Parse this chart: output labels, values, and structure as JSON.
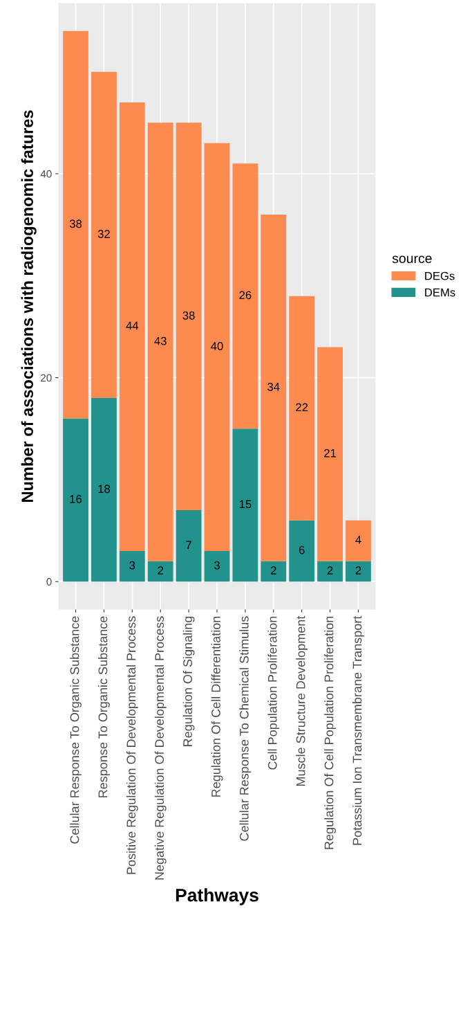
{
  "chart_data": {
    "type": "bar",
    "stacked": true,
    "xlabel": "Pathways",
    "ylabel": "Number of associations with radiogenomic fatures",
    "legend_title": "source",
    "legend": "right",
    "categories": [
      "Cellular Response To Organic Substance",
      "Response To Organic Substance",
      "Positive Regulation Of Developmental Process",
      "Negative Regulation Of Developmental Process",
      "Regulation Of Signaling",
      "Regulation Of Cell Differentiation",
      "Cellular Response To Chemical Stimulus",
      "Cell Population Proliferation",
      "Muscle Structure Development",
      "Regulation Of Cell Population Proliferation",
      "Potassium Ion Transmembrane Transport"
    ],
    "series": [
      {
        "name": "DEMs",
        "color": "#21928c",
        "values": [
          16,
          18,
          3,
          2,
          7,
          3,
          15,
          2,
          6,
          2,
          2
        ]
      },
      {
        "name": "DEGs",
        "color": "#fd8b4f",
        "values": [
          38,
          32,
          44,
          43,
          38,
          40,
          26,
          34,
          22,
          21,
          4
        ]
      }
    ],
    "data_labels": true,
    "ylim": [
      -2.7,
      56.7
    ],
    "yticks": [
      0,
      20,
      40
    ],
    "grid": true
  }
}
